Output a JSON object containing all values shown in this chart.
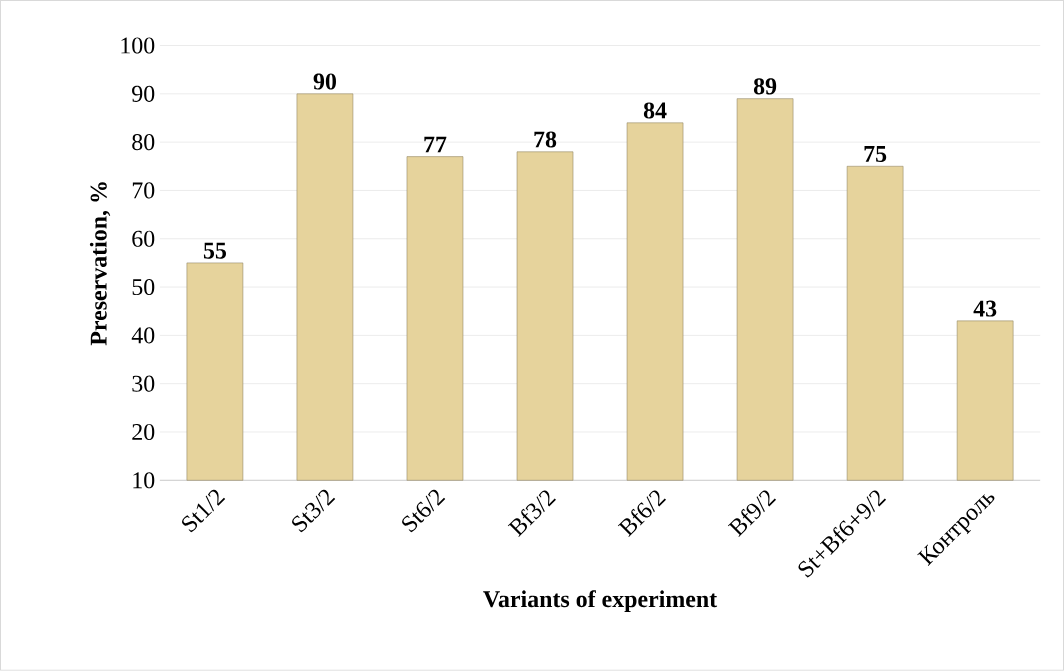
{
  "chart_data": {
    "type": "bar",
    "xlabel": "Variants of experiment",
    "ylabel": "Preservation, %",
    "categories": [
      "St1/2",
      "St3/2",
      "St6/2",
      "Bf3/2",
      "Bf6/2",
      "Bf9/2",
      "St+Bf6+9/2",
      "Контроль"
    ],
    "values": [
      55,
      90,
      77,
      78,
      84,
      89,
      75,
      43
    ],
    "color": "#e6d39c",
    "ylim": [
      10,
      100
    ],
    "yticks": [
      10,
      20,
      30,
      40,
      50,
      60,
      70,
      80,
      90,
      100
    ],
    "grid": "y",
    "data_labels": true
  }
}
